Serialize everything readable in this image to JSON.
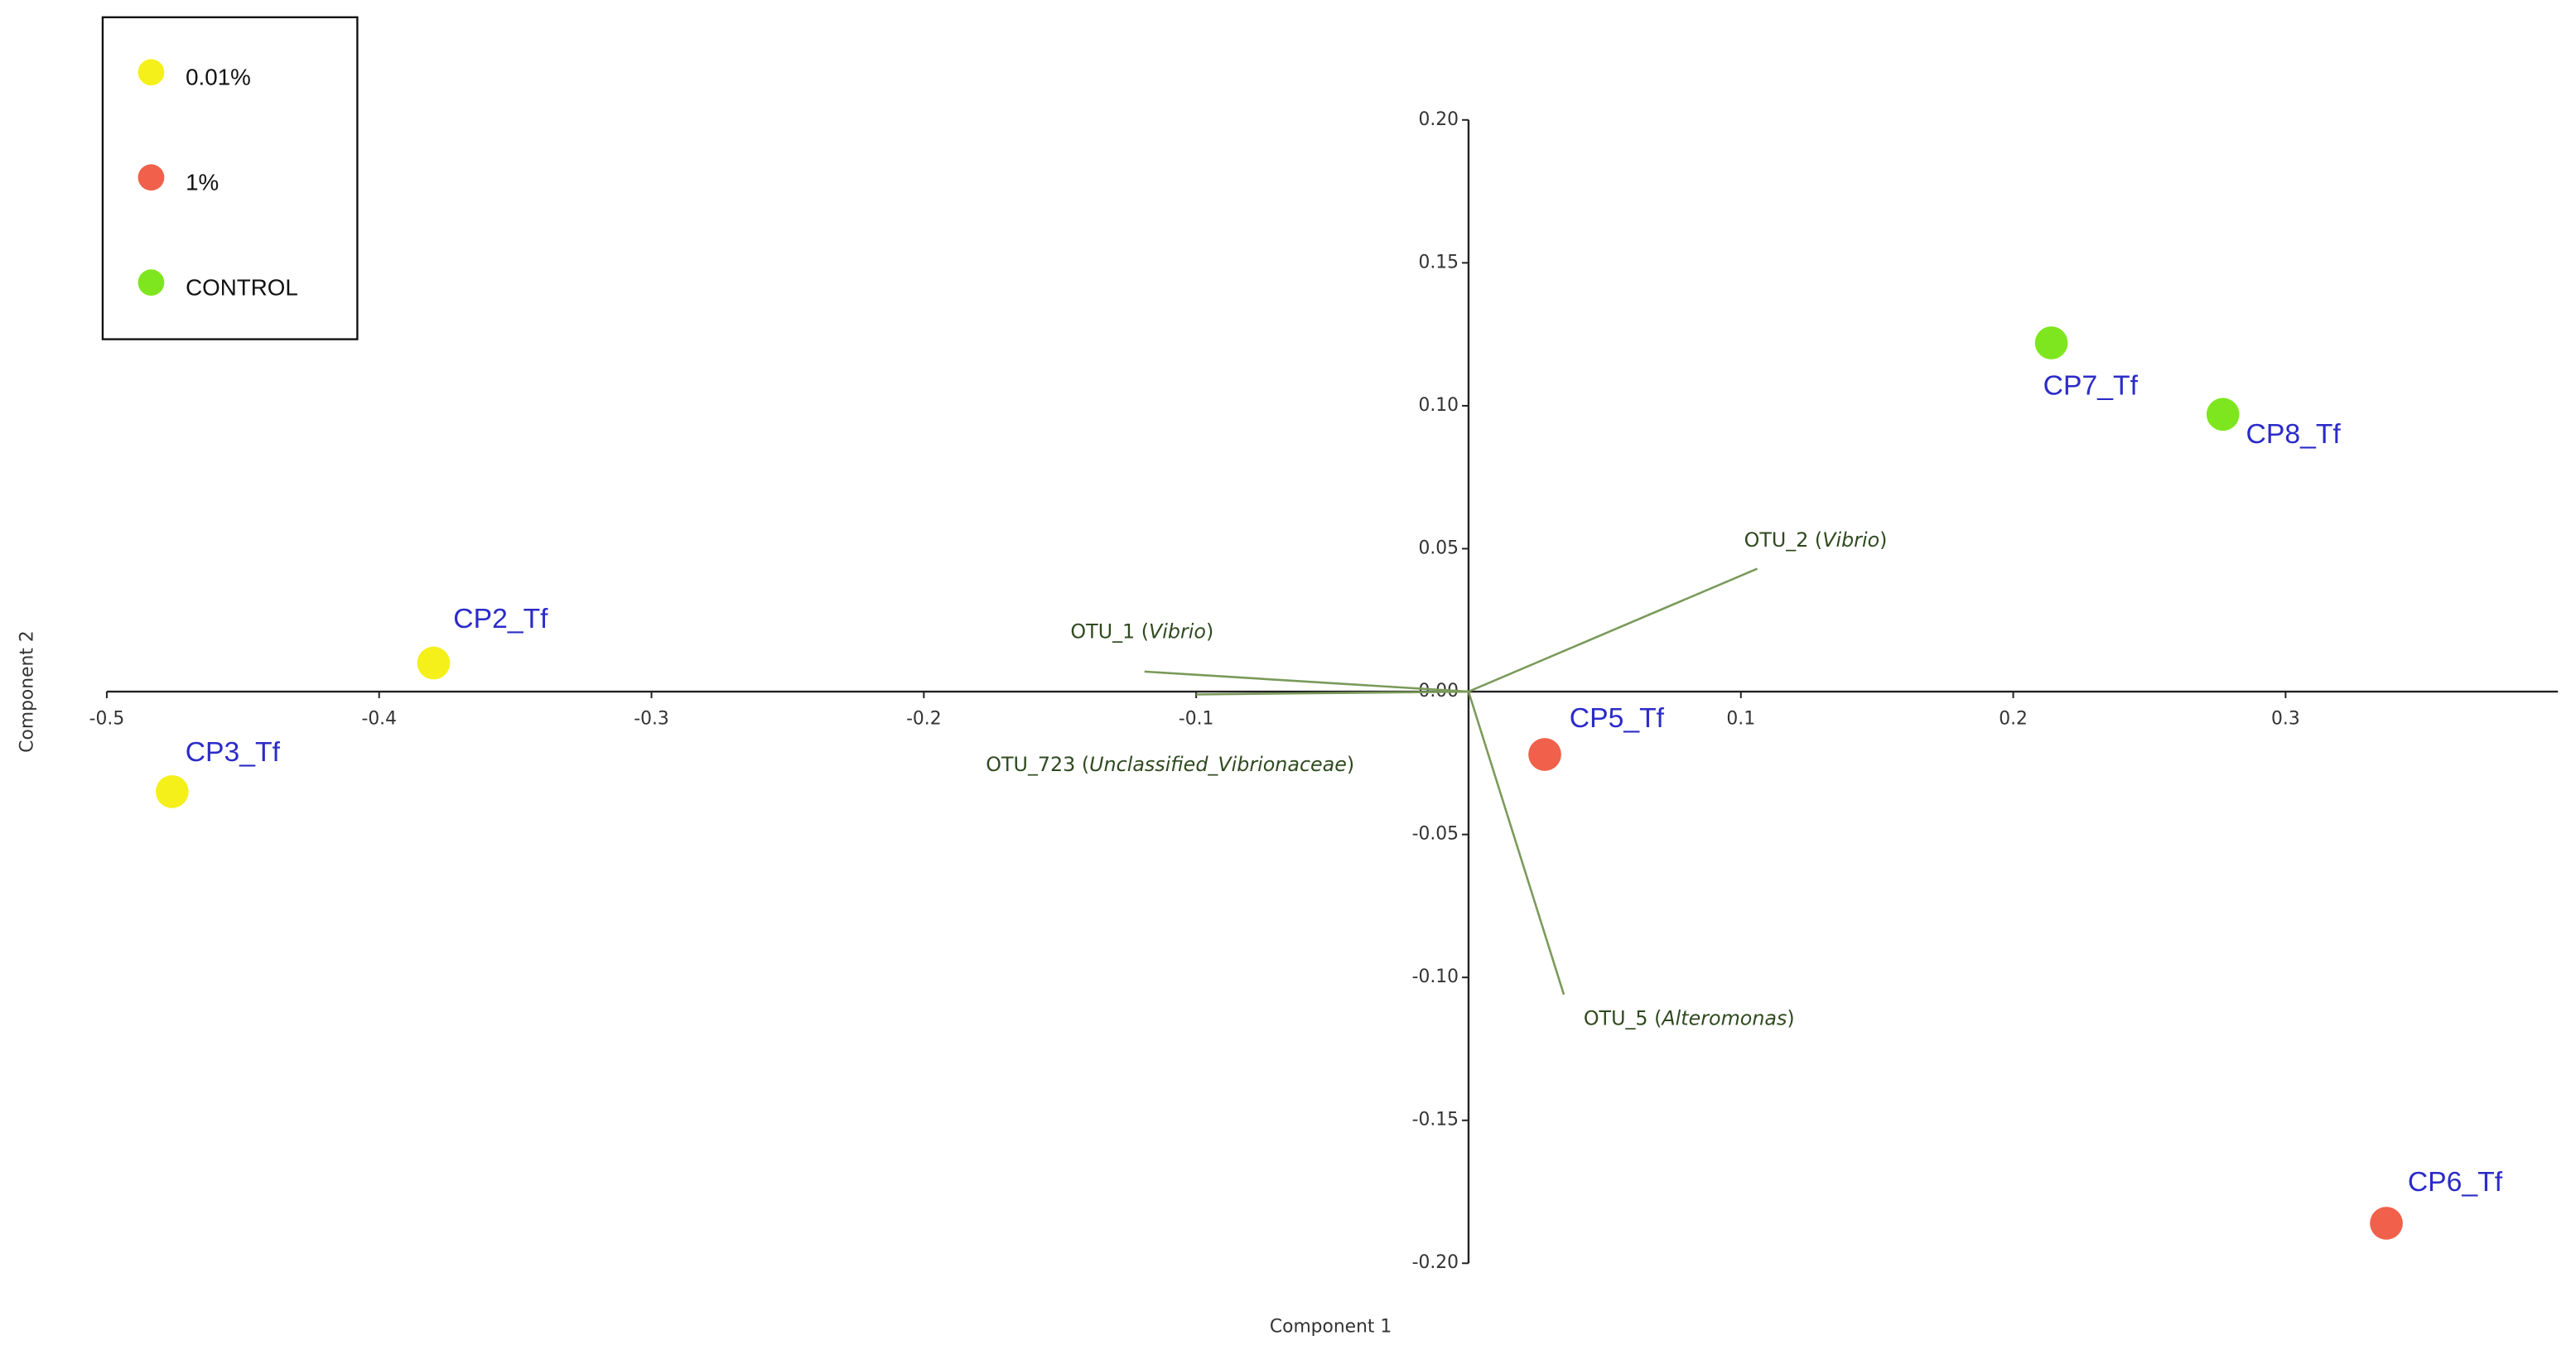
{
  "chart_data": {
    "type": "biplot",
    "x_label": "Component 1",
    "y_label": "Component 2",
    "xlim": [
      -0.5,
      0.4
    ],
    "ylim": [
      -0.2,
      0.2
    ],
    "xticks": [
      -0.5,
      -0.4,
      -0.3,
      -0.2,
      -0.1,
      0.1,
      0.2,
      0.3
    ],
    "yticks": [
      {
        "value": 0.2,
        "label": "0.20"
      },
      {
        "value": 0.15,
        "label": "0.15"
      },
      {
        "value": 0.1,
        "label": "0.10"
      },
      {
        "value": 0.05,
        "label": "0.05"
      },
      {
        "value": 0,
        "label": "0.00"
      },
      {
        "value": -0.05,
        "label": "-0.05"
      },
      {
        "value": -0.1,
        "label": "-0.10"
      },
      {
        "value": -0.15,
        "label": "-0.15"
      },
      {
        "value": -0.2,
        "label": "-0.20"
      }
    ],
    "series": [
      {
        "name": "0.01%",
        "color": "#f5f01a",
        "x": [
          -0.38,
          -0.476
        ],
        "values": [
          0.01,
          -0.035
        ],
        "labels": [
          "CP2_Tf",
          "CP3_Tf"
        ]
      },
      {
        "name": "1%",
        "color": "#f0604a",
        "x": [
          0.028,
          0.337
        ],
        "values": [
          -0.022,
          -0.186
        ],
        "labels": [
          "CP5_Tf",
          "CP6_Tf"
        ]
      },
      {
        "name": "CONTROL",
        "color": "#7ee61e",
        "x": [
          0.214,
          0.277
        ],
        "values": [
          0.122,
          0.097
        ],
        "labels": [
          "CP7_Tf",
          "CP8_Tf"
        ]
      }
    ],
    "vectors": {
      "color": "#7a9a5a",
      "labels": [
        "OTU_1 (Vibrio)",
        "OTU_723 (Unclassified_Vibrionaceae)",
        "OTU_2 (Vibrio)",
        "OTU_5 (Alteromonas)"
      ],
      "x": [
        -0.119,
        -0.1,
        0.106,
        0.035
      ],
      "values": [
        0.007,
        -0.001,
        0.043,
        -0.106
      ]
    }
  }
}
